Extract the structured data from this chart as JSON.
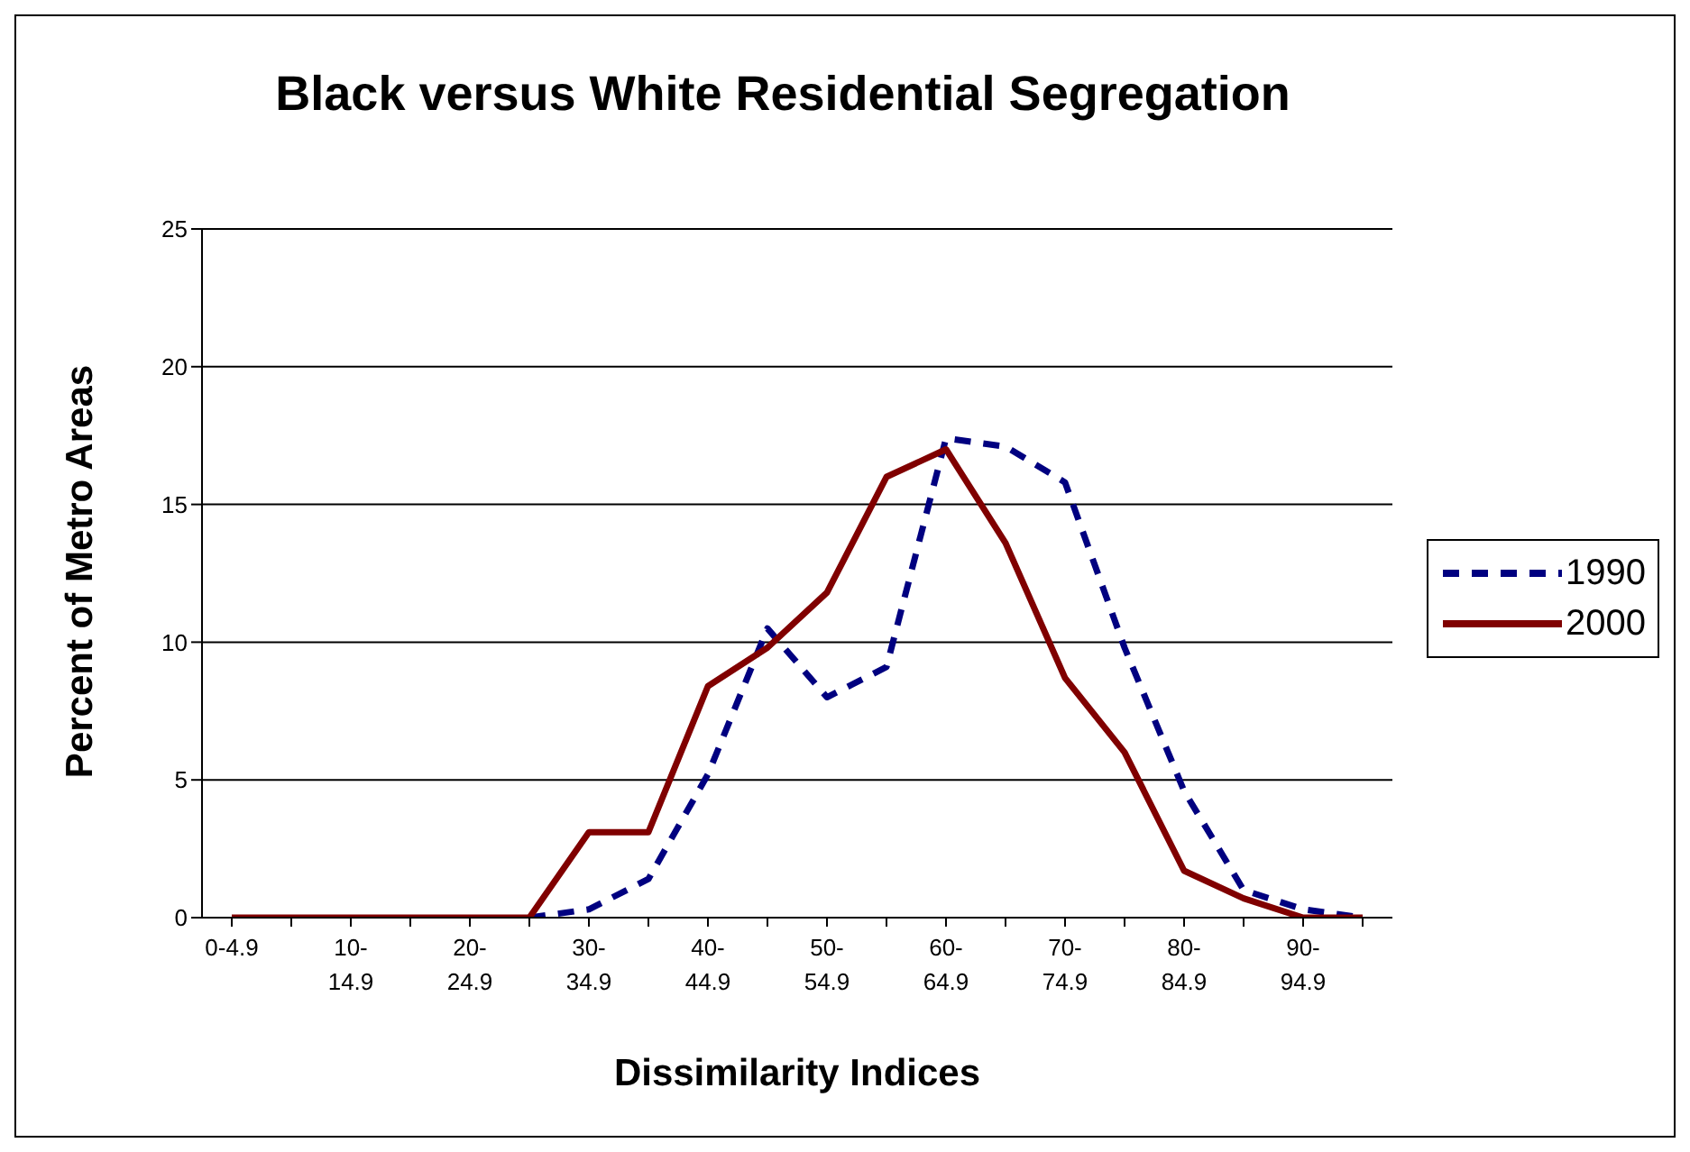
{
  "chart_data": {
    "type": "line",
    "title": "Black versus White Residential Segregation",
    "xlabel": "Dissimilarity Indices",
    "ylabel": "Percent of Metro Areas",
    "categories": [
      "0-4.9",
      null,
      "10-14.9",
      null,
      "20-24.9",
      null,
      "30-34.9",
      null,
      "40-44.9",
      null,
      "50-54.9",
      null,
      "60-64.9",
      null,
      "70-74.9",
      null,
      "80-84.9",
      null,
      "90-94.9",
      null
    ],
    "series": [
      {
        "name": "1990",
        "color": "#000080",
        "line_style": "dashed",
        "values": [
          null,
          null,
          null,
          null,
          null,
          0,
          0.3,
          1.4,
          5.2,
          10.5,
          8.0,
          9.1,
          17.4,
          17.1,
          15.8,
          9.8,
          4.6,
          1.0,
          0.3,
          0
        ]
      },
      {
        "name": "2000",
        "color": "#800000",
        "line_style": "solid",
        "values": [
          0,
          0,
          0,
          0,
          0,
          0,
          3.1,
          3.1,
          8.4,
          9.8,
          11.8,
          16.0,
          17.0,
          13.6,
          8.7,
          6.0,
          1.7,
          0.7,
          0,
          0
        ]
      }
    ],
    "ylim": [
      0,
      25
    ],
    "yticks": [
      0,
      5,
      10,
      15,
      20,
      25
    ],
    "grid": "y",
    "legend": "right",
    "marker": "none"
  }
}
